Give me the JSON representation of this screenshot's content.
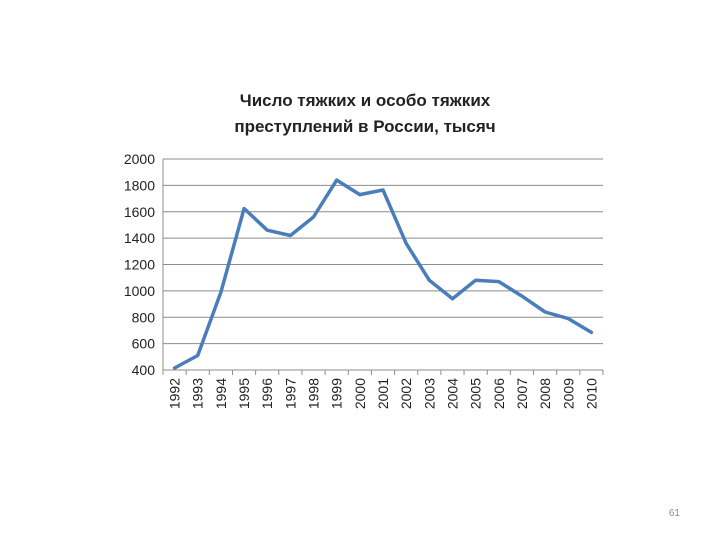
{
  "chart_data": {
    "type": "line",
    "title_lines": [
      "Число тяжких и особо тяжких",
      "преступлений в России, тысяч"
    ],
    "categories": [
      "1992",
      "1993",
      "1994",
      "1995",
      "1996",
      "1997",
      "1998",
      "1999",
      "2000",
      "2001",
      "2002",
      "2003",
      "2004",
      "2005",
      "2006",
      "2007",
      "2008",
      "2009",
      "2010"
    ],
    "series": [
      {
        "values": [
          415,
          510,
          990,
          1625,
          1460,
          1420,
          1560,
          1840,
          1730,
          1765,
          1360,
          1080,
          940,
          1080,
          1070,
          960,
          840,
          790,
          685
        ],
        "color": "#4a7ebb"
      }
    ],
    "y_ticks": [
      "2000",
      "1800",
      "1600",
      "1400",
      "1200",
      "1000",
      "800",
      "600",
      "400"
    ],
    "ylim": [
      400,
      2000
    ],
    "grid": true,
    "legend": "none"
  },
  "slide_number": "61"
}
